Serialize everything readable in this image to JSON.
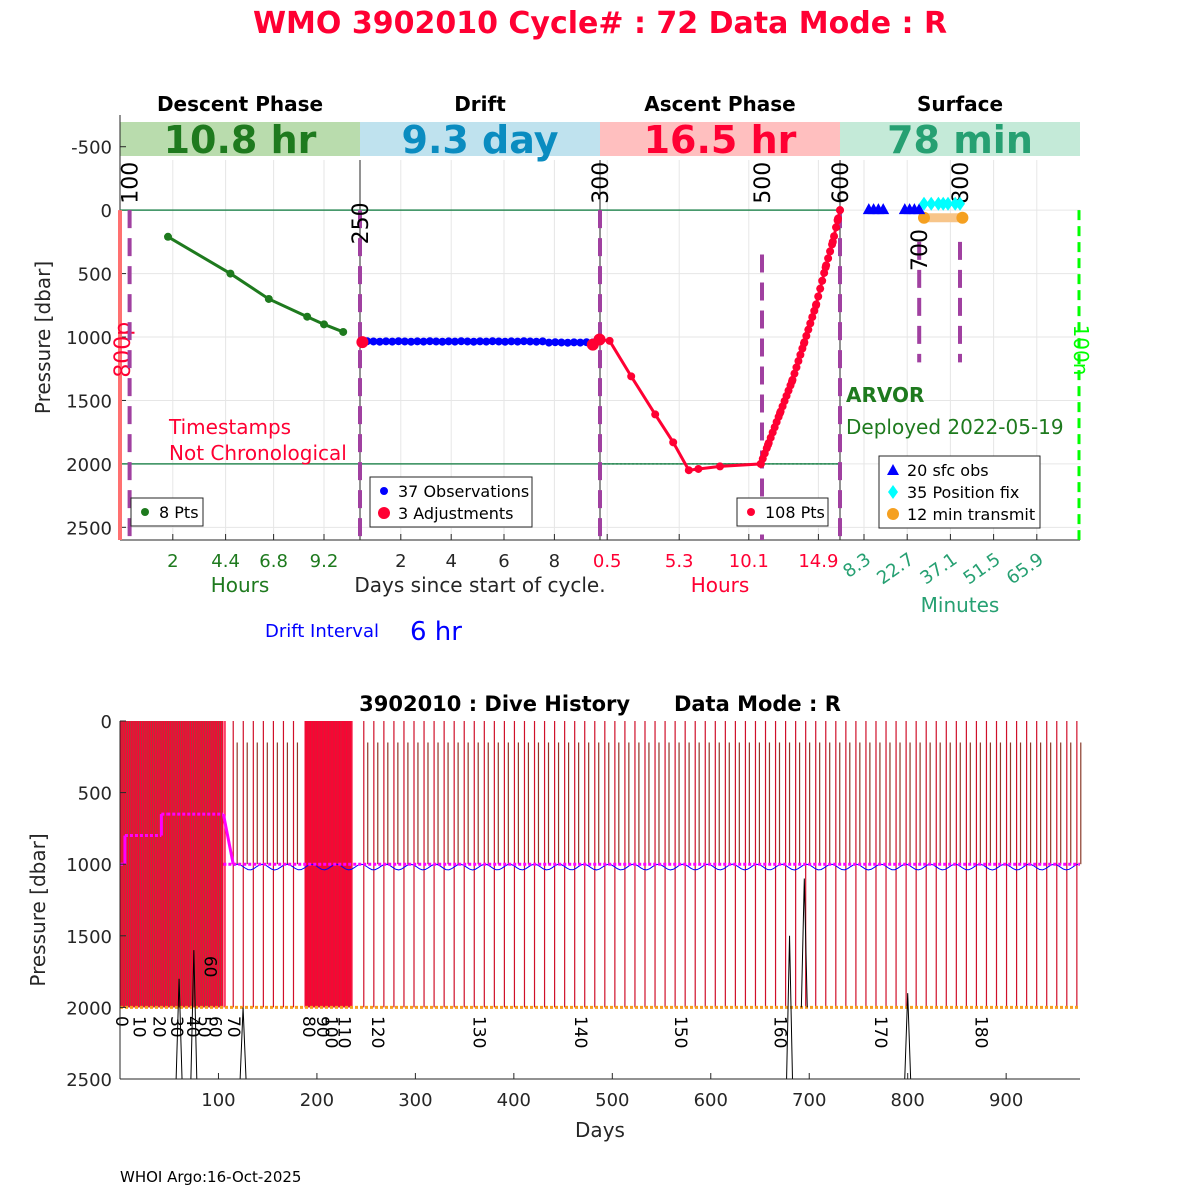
{
  "title": "WMO 3902010   Cycle# : 72   Data Mode : R",
  "colors": {
    "descent": "#1e7a1e",
    "descent_bg": "#b9dcad",
    "drift": "#0000ff",
    "drift_text": "#0a8cc0",
    "drift_bg": "#bfe2ee",
    "ascent": "#ff0033",
    "ascent_bg": "#ffbfbf",
    "surface": "#26a072",
    "surface_bg": "#c4ead8",
    "purple": "#a040a0",
    "teal": "#2e8b57",
    "magenta": "#ff00ff",
    "brown": "#8b3a2a",
    "orange": "#f5a020",
    "bright_green": "#00ff00"
  },
  "top_panel": {
    "yaxis": {
      "label": "Pressure [dbar]",
      "min": -750,
      "max": 2600,
      "ticks": [
        -500,
        0,
        500,
        1000,
        1500,
        2000,
        2500
      ],
      "tick_labels": [
        "-500",
        "0",
        "500",
        "1000",
        "1500",
        "2000",
        "2500"
      ]
    },
    "ref_lines": [
      0,
      2000
    ],
    "phases": [
      {
        "name": "Descent Phase",
        "duration": "10.8 hr",
        "unit_label": "Hours",
        "ticks": [
          {
            "v": 0.22,
            "label": "2"
          },
          {
            "v": 0.44,
            "label": "4.4"
          },
          {
            "v": 0.64,
            "label": "6.8"
          },
          {
            "v": 0.85,
            "label": "9.2"
          }
        ]
      },
      {
        "name": "Drift",
        "duration": "9.3 day",
        "unit_label": "Days since start of cycle.",
        "ticks": [
          {
            "v": 0.17,
            "label": "2"
          },
          {
            "v": 0.38,
            "label": "4"
          },
          {
            "v": 0.6,
            "label": "6"
          },
          {
            "v": 0.81,
            "label": "8"
          }
        ]
      },
      {
        "name": "Ascent Phase",
        "duration": "16.5 hr",
        "unit_label": "Hours",
        "ticks": [
          {
            "v": 0.03,
            "label": "0.5"
          },
          {
            "v": 0.33,
            "label": "5.3"
          },
          {
            "v": 0.62,
            "label": "10.1"
          },
          {
            "v": 0.91,
            "label": "14.9"
          }
        ]
      },
      {
        "name": "Surface",
        "duration": "78 min",
        "unit_label": "Minutes",
        "ticks": [
          {
            "v": 0.1,
            "label": "8.3"
          },
          {
            "v": 0.28,
            "label": "22.7"
          },
          {
            "v": 0.46,
            "label": "37.1"
          },
          {
            "v": 0.64,
            "label": "51.5"
          },
          {
            "v": 0.82,
            "label": "65.9"
          }
        ]
      }
    ],
    "descent_series": [
      {
        "t": 0.2,
        "p": 210
      },
      {
        "t": 0.46,
        "p": 500
      },
      {
        "t": 0.62,
        "p": 700
      },
      {
        "t": 0.78,
        "p": 840
      },
      {
        "t": 0.85,
        "p": 900
      },
      {
        "t": 0.93,
        "p": 960
      }
    ],
    "drift_series": {
      "count": 37,
      "base_p": 1035
    },
    "drift_adjustments": [
      {
        "t": 0.01,
        "p": 1040
      },
      {
        "t": 0.97,
        "p": 1060
      },
      {
        "t": 0.998,
        "p": 1020
      }
    ],
    "ascent_series": [
      {
        "t": 0.0,
        "p": 1020
      },
      {
        "t": 0.04,
        "p": 1030
      },
      {
        "t": 0.13,
        "p": 1310
      },
      {
        "t": 0.23,
        "p": 1610
      },
      {
        "t": 0.305,
        "p": 1830
      },
      {
        "t": 0.37,
        "p": 2050
      },
      {
        "t": 0.41,
        "p": 2040
      },
      {
        "t": 0.5,
        "p": 2020
      },
      {
        "t": 0.67,
        "p": 2000
      },
      {
        "t": 0.7,
        "p": 1850
      },
      {
        "t": 0.75,
        "p": 1600
      },
      {
        "t": 0.8,
        "p": 1350
      },
      {
        "t": 0.85,
        "p": 1050
      },
      {
        "t": 0.9,
        "p": 750
      },
      {
        "t": 0.94,
        "p": 450
      },
      {
        "t": 0.97,
        "p": 250
      },
      {
        "t": 0.99,
        "p": 80
      },
      {
        "t": 1.0,
        "p": 0
      }
    ],
    "surface_obs_t": [
      0.12,
      0.14,
      0.16,
      0.18,
      0.27,
      0.29,
      0.31,
      0.33
    ],
    "surface_fix_t": [
      0.35,
      0.38,
      0.41,
      0.43,
      0.45,
      0.48,
      0.5
    ],
    "transmit": {
      "t0": 0.35,
      "t1": 0.51,
      "p": 60
    },
    "count_markers": [
      {
        "label": "100",
        "phase": 0,
        "t": 0.04
      },
      {
        "label": "250",
        "phase": 1,
        "t": 0.0
      },
      {
        "label": "300",
        "phase": 2,
        "t": 0.0
      },
      {
        "label": "500",
        "phase": 2,
        "t": 0.675
      },
      {
        "label": "600",
        "phase": 3,
        "t": 0.0
      },
      {
        "label": "700",
        "phase": 3,
        "t": 0.33
      },
      {
        "label": "800",
        "phase": 3,
        "t": 0.5
      }
    ],
    "side_labels": {
      "left": "800p",
      "right": "100n"
    },
    "annotation_timestamps": [
      "Timestamps",
      "Not Chronological"
    ],
    "float_type": "ARVOR",
    "deployed": "Deployed 2022-05-19",
    "legends": {
      "descent": [
        "8 Pts"
      ],
      "drift": [
        "37 Observations",
        "3 Adjustments"
      ],
      "ascent": [
        "108 Pts"
      ],
      "surface": [
        "20 sfc obs",
        "35 Position fix",
        "12 min transmit"
      ]
    },
    "drift_interval_label": "Drift Interval",
    "drift_interval_value": "6 hr"
  },
  "bottom_panel": {
    "title": "3902010 : Dive History      Data Mode : R",
    "xlabel": "Days",
    "ylabel": "Pressure [dbar]",
    "xlim": [
      0,
      975
    ],
    "ylim": [
      0,
      2500
    ],
    "xticks": [
      100,
      200,
      300,
      400,
      500,
      600,
      700,
      800,
      900
    ],
    "xtick_labels": [
      "100",
      "200",
      "300",
      "400",
      "500",
      "600",
      "700",
      "800",
      "900"
    ],
    "yticks": [
      0,
      500,
      1000,
      1500,
      2000,
      2500
    ],
    "ytick_labels": [
      "0",
      "500",
      "1000",
      "1500",
      "2000",
      "2500"
    ],
    "cycle_labels": [
      {
        "label": "0",
        "day": 2
      },
      {
        "label": "10",
        "day": 20
      },
      {
        "label": "20",
        "day": 40
      },
      {
        "label": "30",
        "day": 58
      },
      {
        "label": "40",
        "day": 74
      },
      {
        "label": "50",
        "day": 86
      },
      {
        "label": "60",
        "day": 97
      },
      {
        "label": "70",
        "day": 116
      },
      {
        "label": "80",
        "day": 192
      },
      {
        "label": "90",
        "day": 206
      },
      {
        "label": "100",
        "day": 215
      },
      {
        "label": "110",
        "day": 228
      },
      {
        "label": "120",
        "day": 262
      },
      {
        "label": "130",
        "day": 365
      },
      {
        "label": "140",
        "day": 468
      },
      {
        "label": "150",
        "day": 570
      },
      {
        "label": "160",
        "day": 671
      },
      {
        "label": "170",
        "day": 773
      },
      {
        "label": "180",
        "day": 875
      }
    ],
    "park_depth_segments": [
      {
        "d0": 0,
        "d1": 5,
        "p": 1000
      },
      {
        "d0": 5,
        "d1": 42,
        "p": 800
      },
      {
        "d0": 42,
        "d1": 48,
        "p": 650
      },
      {
        "d0": 48,
        "d1": 105,
        "p": 650
      },
      {
        "d0": 105,
        "d1": 115,
        "p": 1000
      },
      {
        "d0": 115,
        "d1": 975,
        "p": 1000
      }
    ],
    "profile_depth": 2000
  },
  "footer": "WHOI Argo:16-Oct-2025"
}
